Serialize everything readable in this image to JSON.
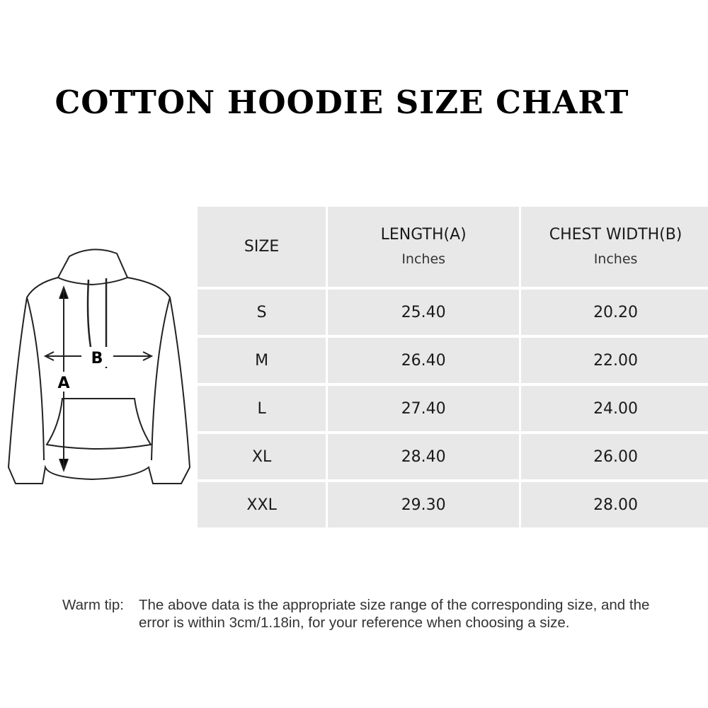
{
  "title": "COTTON HOODIE SIZE CHART",
  "diagram": {
    "label_a": "A",
    "label_b": "B"
  },
  "table": {
    "headers": [
      {
        "label": "SIZE",
        "unit": ""
      },
      {
        "label": "LENGTH(A)",
        "unit": "Inches"
      },
      {
        "label": "CHEST WIDTH(B)",
        "unit": "Inches"
      }
    ],
    "rows": [
      [
        "S",
        "25.40",
        "20.20"
      ],
      [
        "M",
        "26.40",
        "22.00"
      ],
      [
        "L",
        "27.40",
        "24.00"
      ],
      [
        "XL",
        "28.40",
        "26.00"
      ],
      [
        "XXL",
        "29.30",
        "28.00"
      ]
    ]
  },
  "tip": {
    "label": "Warm tip:",
    "text": "The above data is the appropriate size range of the corresponding size, and the error is within 3cm/1.18in, for your reference when choosing a size."
  }
}
